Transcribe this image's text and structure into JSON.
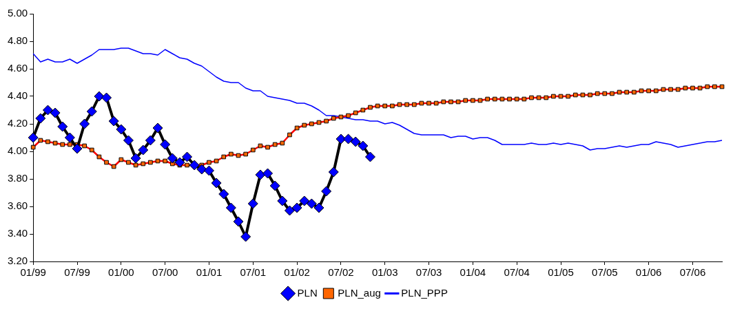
{
  "chart_data": {
    "type": "line",
    "categories": [
      "01/99",
      null,
      null,
      null,
      null,
      null,
      "07/99",
      null,
      null,
      null,
      null,
      null,
      "01/00",
      null,
      null,
      null,
      null,
      null,
      "07/00",
      null,
      null,
      null,
      null,
      null,
      "01/01",
      null,
      null,
      null,
      null,
      null,
      "07/01",
      null,
      null,
      null,
      null,
      null,
      "01/02",
      null,
      null,
      null,
      null,
      null,
      "07/02",
      null,
      null,
      null,
      null,
      null,
      "01/03",
      null,
      null,
      null,
      null,
      null,
      "07/03",
      null,
      null,
      null,
      null,
      null,
      "01/04",
      null,
      null,
      null,
      null,
      null,
      "07/04",
      null,
      null,
      null,
      null,
      null,
      "01/05",
      null,
      null,
      null,
      null,
      null,
      "07/05",
      null,
      null,
      null,
      null,
      null,
      "01/06",
      null,
      null,
      null,
      null,
      null,
      "07/06",
      null,
      null,
      null,
      null
    ],
    "series": [
      {
        "name": "PLN",
        "color": "#000000",
        "marker": "diamond",
        "values": [
          4.1,
          4.24,
          4.3,
          4.28,
          4.18,
          4.1,
          4.02,
          4.2,
          4.29,
          4.4,
          4.39,
          4.22,
          4.16,
          4.08,
          3.95,
          4.01,
          4.08,
          4.17,
          4.05,
          3.95,
          3.92,
          3.96,
          3.9,
          3.87,
          3.86,
          3.77,
          3.69,
          3.59,
          3.49,
          3.38,
          3.62,
          3.83,
          3.84,
          3.75,
          3.64,
          3.57,
          3.59,
          3.64,
          3.62,
          3.59,
          3.71,
          3.85,
          4.09,
          4.09,
          4.07,
          4.04,
          3.96,
          null,
          null,
          null,
          null,
          null,
          null,
          null,
          null,
          null,
          null,
          null,
          null,
          null,
          null,
          null,
          null,
          null,
          null,
          null,
          null,
          null,
          null,
          null,
          null,
          null,
          null,
          null,
          null,
          null,
          null,
          null,
          null,
          null,
          null,
          null,
          null,
          null,
          null,
          null,
          null,
          null,
          null,
          null,
          null,
          null,
          null,
          null,
          null
        ]
      },
      {
        "name": "PLN_aug",
        "color": "#ff0000",
        "marker": "square",
        "values": [
          4.03,
          4.08,
          4.07,
          4.06,
          4.05,
          4.05,
          4.05,
          4.04,
          4.01,
          3.96,
          3.92,
          3.89,
          3.94,
          3.92,
          3.9,
          3.91,
          3.92,
          3.93,
          3.93,
          3.91,
          3.9,
          3.9,
          3.9,
          3.9,
          3.92,
          3.93,
          3.96,
          3.98,
          3.97,
          3.98,
          4.01,
          4.04,
          4.03,
          4.05,
          4.06,
          4.12,
          4.17,
          4.19,
          4.2,
          4.21,
          4.22,
          4.24,
          4.25,
          4.26,
          4.28,
          4.3,
          4.32,
          4.33,
          4.33,
          4.33,
          4.34,
          4.34,
          4.34,
          4.35,
          4.35,
          4.35,
          4.36,
          4.36,
          4.36,
          4.37,
          4.37,
          4.37,
          4.38,
          4.38,
          4.38,
          4.38,
          4.38,
          4.38,
          4.39,
          4.39,
          4.39,
          4.4,
          4.4,
          4.4,
          4.41,
          4.41,
          4.41,
          4.42,
          4.42,
          4.42,
          4.43,
          4.43,
          4.43,
          4.44,
          4.44,
          4.44,
          4.45,
          4.45,
          4.45,
          4.46,
          4.46,
          4.46,
          4.47,
          4.47,
          4.47
        ]
      },
      {
        "name": "PLN_PPP",
        "color": "#0000ff",
        "marker": "none",
        "values": [
          4.71,
          4.65,
          4.67,
          4.65,
          4.65,
          4.67,
          4.64,
          4.67,
          4.7,
          4.74,
          4.74,
          4.74,
          4.75,
          4.75,
          4.73,
          4.71,
          4.71,
          4.7,
          4.74,
          4.71,
          4.68,
          4.67,
          4.64,
          4.62,
          4.58,
          4.54,
          4.51,
          4.5,
          4.5,
          4.46,
          4.44,
          4.44,
          4.4,
          4.39,
          4.38,
          4.37,
          4.35,
          4.35,
          4.33,
          4.3,
          4.26,
          4.26,
          4.25,
          4.24,
          4.23,
          4.23,
          4.22,
          4.22,
          4.2,
          4.21,
          4.19,
          4.16,
          4.13,
          4.12,
          4.12,
          4.12,
          4.12,
          4.1,
          4.11,
          4.11,
          4.09,
          4.1,
          4.1,
          4.08,
          4.05,
          4.05,
          4.05,
          4.05,
          4.06,
          4.05,
          4.05,
          4.06,
          4.05,
          4.06,
          4.05,
          4.04,
          4.01,
          4.02,
          4.02,
          4.03,
          4.04,
          4.03,
          4.04,
          4.05,
          4.05,
          4.07,
          4.06,
          4.05,
          4.03,
          4.04,
          4.05,
          4.06,
          4.07,
          4.07,
          4.08
        ]
      }
    ],
    "ylim": [
      3.2,
      5.0
    ],
    "yticks": [
      {
        "value": 3.2,
        "label": "3.20"
      },
      {
        "value": 3.4,
        "label": "3.40"
      },
      {
        "value": 3.6,
        "label": "3.60"
      },
      {
        "value": 3.8,
        "label": "3.80"
      },
      {
        "value": 4.0,
        "label": "4.00"
      },
      {
        "value": 4.2,
        "label": "4.20"
      },
      {
        "value": 4.4,
        "label": "4.40"
      },
      {
        "value": 4.6,
        "label": "4.60"
      },
      {
        "value": 4.8,
        "label": "4.80"
      },
      {
        "value": 5.0,
        "label": "5.00"
      }
    ],
    "grid": false,
    "legend": "bottom"
  }
}
